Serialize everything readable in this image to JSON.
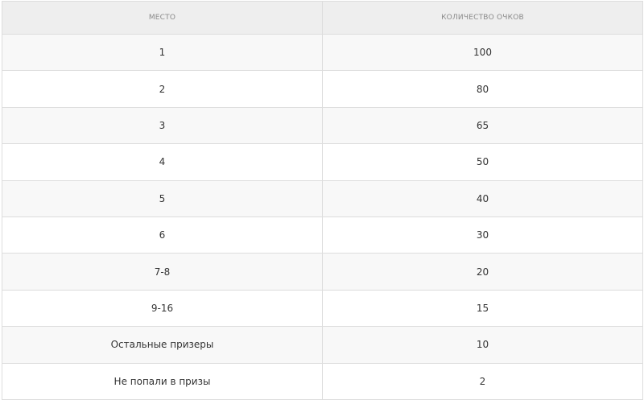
{
  "table": {
    "headers": [
      "Место",
      "Количество очков"
    ],
    "rows": [
      [
        "1",
        "100"
      ],
      [
        "2",
        "80"
      ],
      [
        "3",
        "65"
      ],
      [
        "4",
        "50"
      ],
      [
        "5",
        "40"
      ],
      [
        "6",
        "30"
      ],
      [
        "7-8",
        "20"
      ],
      [
        "9-16",
        "15"
      ],
      [
        "Остальные призеры",
        "10"
      ],
      [
        "Не попали в призы",
        "2"
      ]
    ]
  }
}
